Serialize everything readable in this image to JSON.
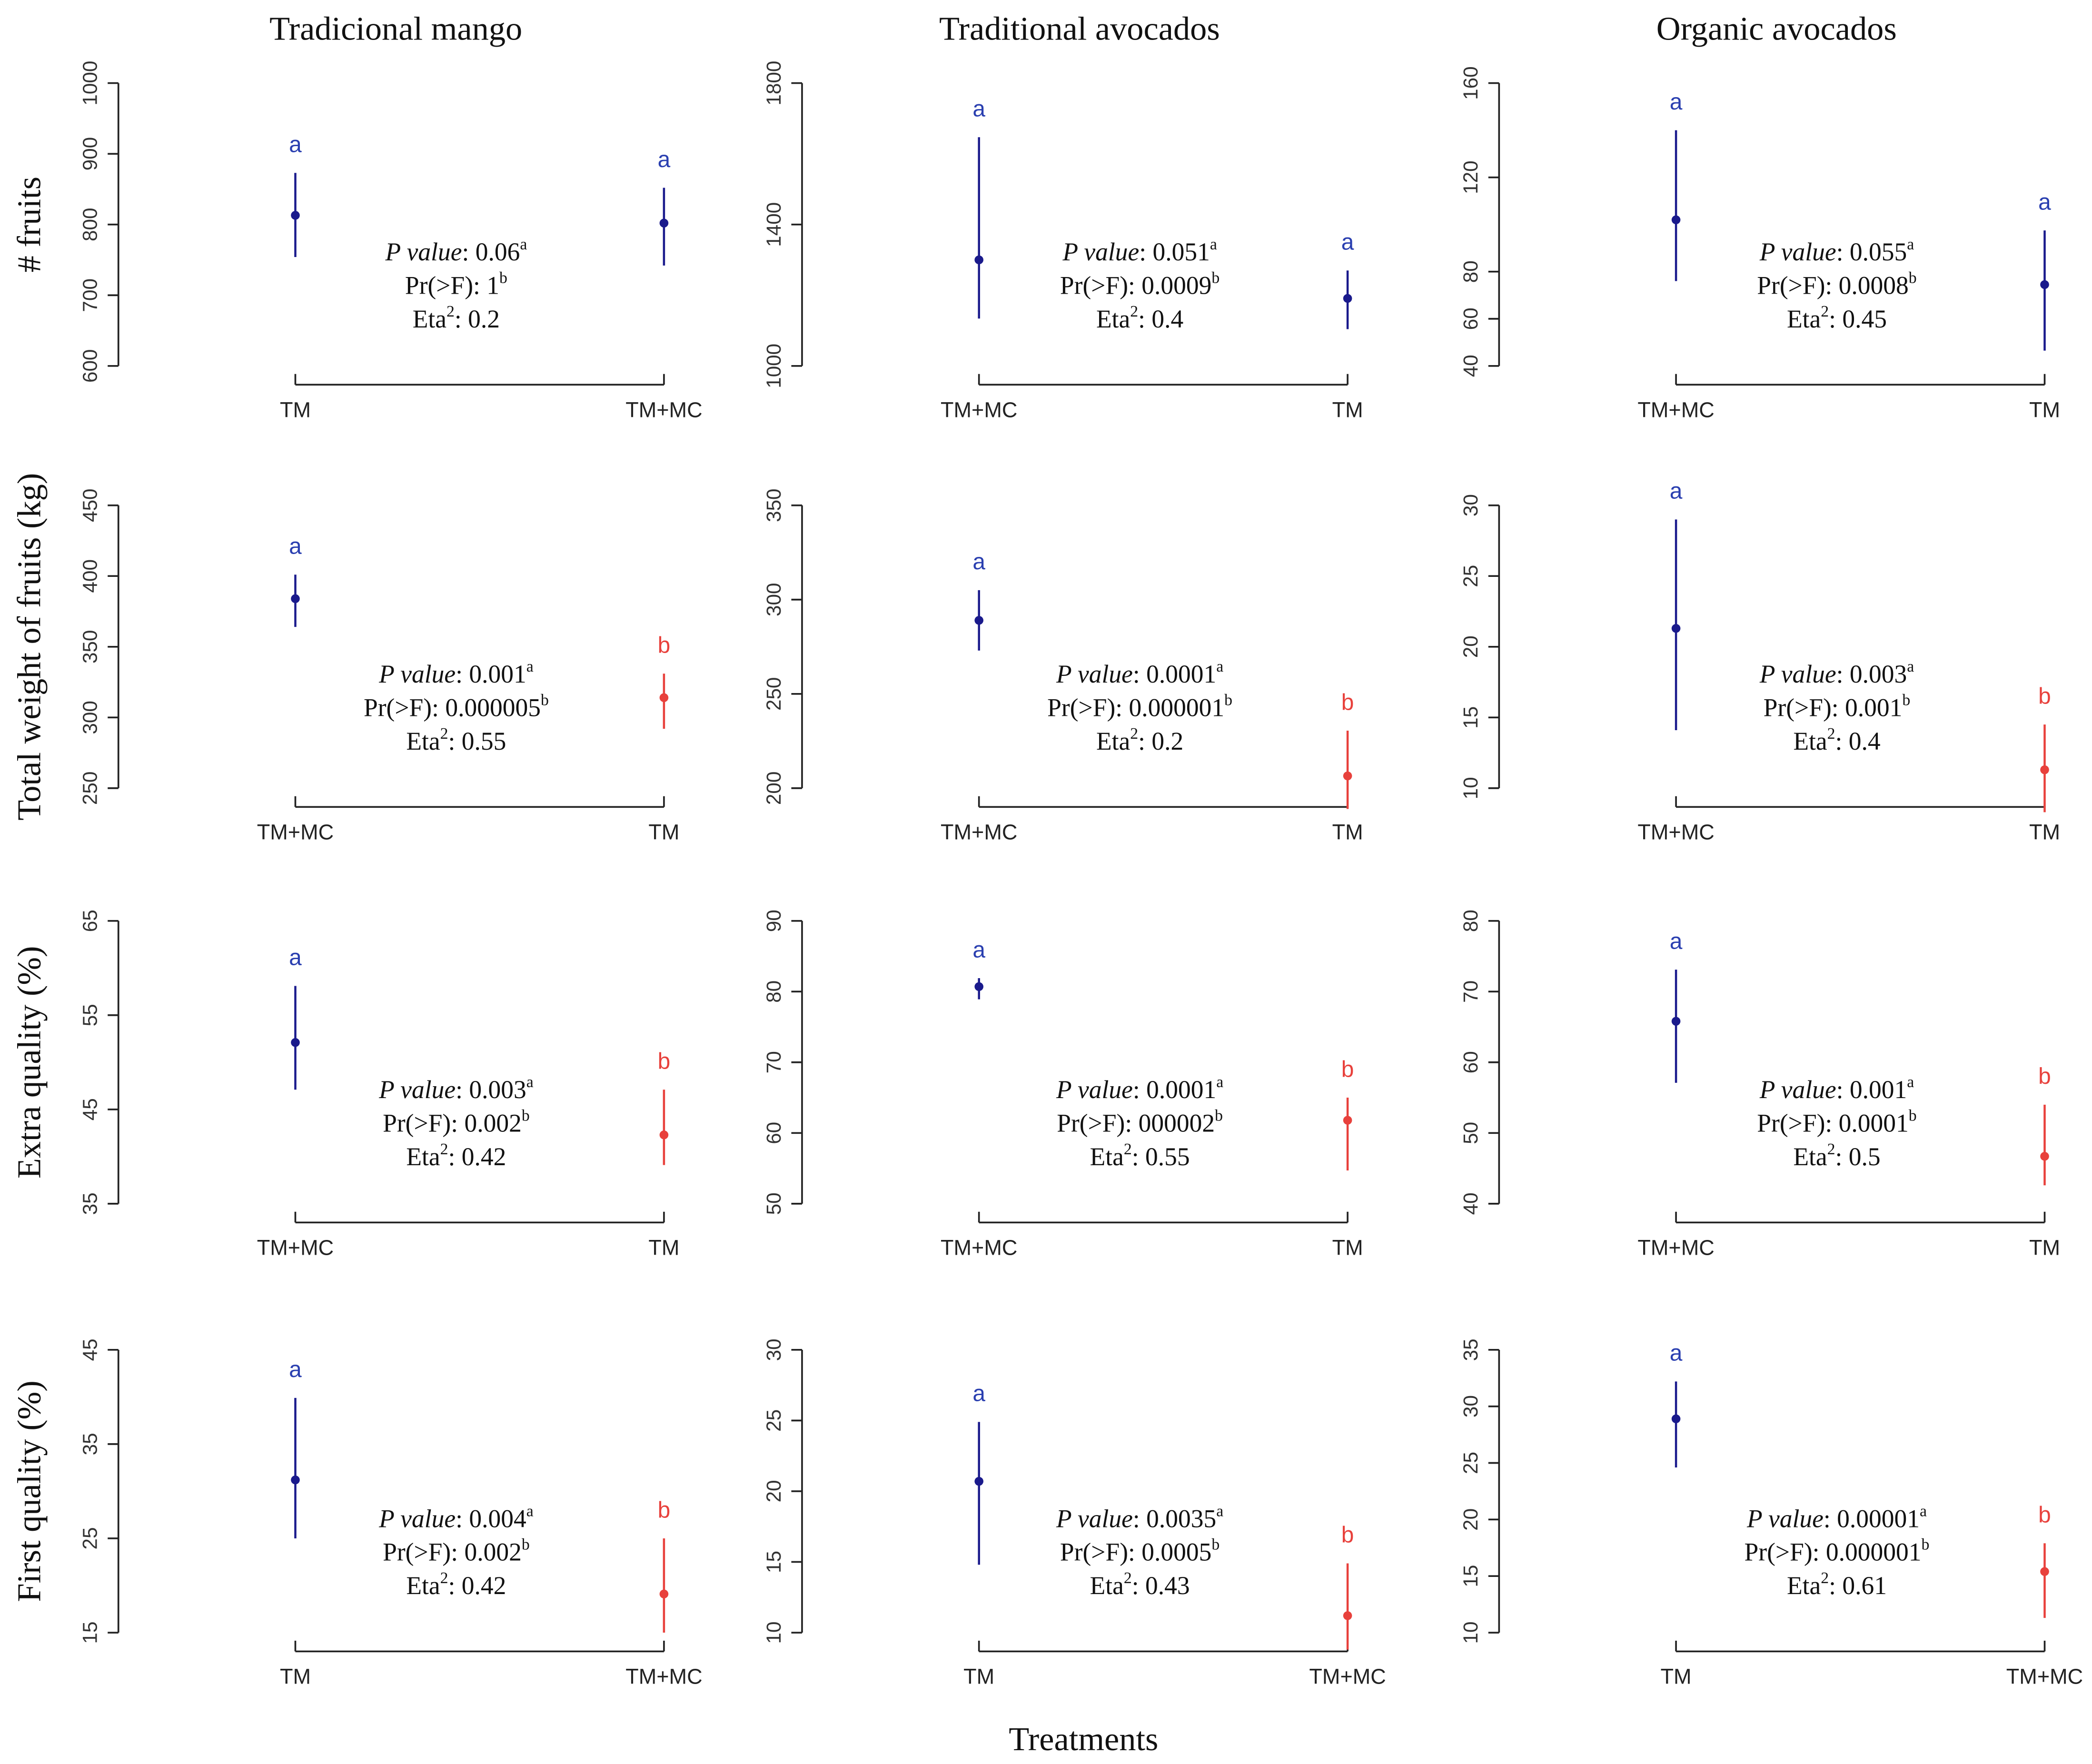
{
  "chart_data": [
    {
      "type": "pointrange",
      "title": "Tradicional mango",
      "ylabel": "# fruits",
      "categories": [
        "TM",
        "TM+MC"
      ],
      "values": [
        813,
        802
      ],
      "low": [
        754,
        742
      ],
      "high": [
        873,
        852
      ],
      "letters": [
        "a",
        "a"
      ],
      "colors": [
        "#1a1a8c",
        "#1a1a8c"
      ],
      "ylim": [
        600,
        1000
      ],
      "yticks": [
        600,
        700,
        800,
        900,
        1000
      ],
      "annotations": [
        [
          {
            "text": "P value",
            "style": "italic"
          },
          {
            "text": ": 0.06"
          },
          {
            "text": "a",
            "style": "sup"
          }
        ],
        [
          {
            "text": "Pr(>F): 1"
          },
          {
            "text": "b",
            "style": "sup"
          }
        ],
        [
          {
            "text": "Eta"
          },
          {
            "text": "2",
            "style": "sup"
          },
          {
            "text": ": 0.2"
          }
        ]
      ]
    },
    {
      "type": "pointrange",
      "title": "Traditional avocados",
      "categories": [
        "TM+MC",
        "TM"
      ],
      "values": [
        1300,
        1191
      ],
      "low": [
        1134,
        1104
      ],
      "high": [
        1647,
        1270
      ],
      "letters": [
        "a",
        "a"
      ],
      "colors": [
        "#1a1a8c",
        "#1a1a8c"
      ],
      "ylim": [
        1000,
        1800
      ],
      "yticks": [
        1000,
        1400,
        1800
      ],
      "annotations": [
        [
          {
            "text": "P value",
            "style": "italic"
          },
          {
            "text": ": 0.051"
          },
          {
            "text": "a",
            "style": "sup"
          }
        ],
        [
          {
            "text": "Pr(>F): 0.0009"
          },
          {
            "text": "b",
            "style": "sup"
          }
        ],
        [
          {
            "text": "Eta"
          },
          {
            "text": "2",
            "style": "sup"
          },
          {
            "text": ": 0.4"
          }
        ]
      ]
    },
    {
      "type": "pointrange",
      "title": "Organic avocados",
      "categories": [
        "TM+MC",
        "TM"
      ],
      "values": [
        102,
        74.5
      ],
      "low": [
        76,
        46.5
      ],
      "high": [
        140,
        97.5
      ],
      "letters": [
        "a",
        "a"
      ],
      "colors": [
        "#1a1a8c",
        "#1a1a8c"
      ],
      "ylim": [
        40,
        160
      ],
      "yticks": [
        40,
        60,
        80,
        120,
        160
      ],
      "annotations": [
        [
          {
            "text": "P value",
            "style": "italic"
          },
          {
            "text": ": 0.055"
          },
          {
            "text": "a",
            "style": "sup"
          }
        ],
        [
          {
            "text": "Pr(>F): 0.0008"
          },
          {
            "text": "b",
            "style": "sup"
          }
        ],
        [
          {
            "text": "Eta"
          },
          {
            "text": "2",
            "style": "sup"
          },
          {
            "text": ": 0.45"
          }
        ]
      ]
    },
    {
      "type": "pointrange",
      "ylabel": "Total weight of fruits (kg)",
      "categories": [
        "TM+MC",
        "TM"
      ],
      "values": [
        384,
        314
      ],
      "low": [
        364,
        292
      ],
      "high": [
        401,
        331
      ],
      "letters": [
        "a",
        "b"
      ],
      "colors": [
        "#1a1a8c",
        "#e8413c"
      ],
      "ylim": [
        250,
        450
      ],
      "yticks": [
        250,
        300,
        350,
        400,
        450
      ],
      "annotations": [
        [
          {
            "text": "P value",
            "style": "italic"
          },
          {
            "text": ": 0.001"
          },
          {
            "text": "a",
            "style": "sup"
          }
        ],
        [
          {
            "text": "Pr(>F): 0.000005"
          },
          {
            "text": "b",
            "style": "sup"
          }
        ],
        [
          {
            "text": "Eta"
          },
          {
            "text": "2",
            "style": "sup"
          },
          {
            "text": ": 0.55"
          }
        ]
      ]
    },
    {
      "type": "pointrange",
      "categories": [
        "TM+MC",
        "TM"
      ],
      "values": [
        289,
        206.5
      ],
      "low": [
        273,
        189
      ],
      "high": [
        305,
        230.5
      ],
      "letters": [
        "a",
        "b"
      ],
      "colors": [
        "#1a1a8c",
        "#e8413c"
      ],
      "ylim": [
        200,
        350
      ],
      "yticks": [
        200,
        250,
        300,
        350
      ],
      "annotations": [
        [
          {
            "text": "P value",
            "style": "italic"
          },
          {
            "text": ": 0.0001"
          },
          {
            "text": "a",
            "style": "sup"
          }
        ],
        [
          {
            "text": "Pr(>F): 0.000001"
          },
          {
            "text": "b",
            "style": "sup"
          }
        ],
        [
          {
            "text": "Eta"
          },
          {
            "text": "2",
            "style": "sup"
          },
          {
            "text": ": 0.2"
          }
        ]
      ]
    },
    {
      "type": "pointrange",
      "categories": [
        "TM+MC",
        "TM"
      ],
      "values": [
        21.3,
        11.3
      ],
      "low": [
        14.1,
        8.3
      ],
      "high": [
        29,
        14.5
      ],
      "letters": [
        "a",
        "b"
      ],
      "colors": [
        "#1a1a8c",
        "#e8413c"
      ],
      "ylim": [
        10,
        30
      ],
      "yticks": [
        10,
        15,
        20,
        25,
        30
      ],
      "annotations": [
        [
          {
            "text": "P value",
            "style": "italic"
          },
          {
            "text": ": 0.003"
          },
          {
            "text": "a",
            "style": "sup"
          }
        ],
        [
          {
            "text": "Pr(>F): 0.001"
          },
          {
            "text": "b",
            "style": "sup"
          }
        ],
        [
          {
            "text": "Eta"
          },
          {
            "text": "2",
            "style": "sup"
          },
          {
            "text": ": 0.4"
          }
        ]
      ]
    },
    {
      "type": "pointrange",
      "ylabel": "Extra quality (%)",
      "categories": [
        "TM+MC",
        "TM"
      ],
      "values": [
        52.1,
        42.3
      ],
      "low": [
        47.1,
        39.1
      ],
      "high": [
        58.1,
        47.1
      ],
      "letters": [
        "a",
        "b"
      ],
      "colors": [
        "#1a1a8c",
        "#e8413c"
      ],
      "ylim": [
        35,
        65
      ],
      "yticks": [
        35,
        45,
        55,
        65
      ],
      "annotations": [
        [
          {
            "text": "P value",
            "style": "italic"
          },
          {
            "text": ": 0.003"
          },
          {
            "text": "a",
            "style": "sup"
          }
        ],
        [
          {
            "text": "Pr(>F): 0.002"
          },
          {
            "text": "b",
            "style": "sup"
          }
        ],
        [
          {
            "text": "Eta"
          },
          {
            "text": "2",
            "style": "sup"
          },
          {
            "text": ": 0.42"
          }
        ]
      ]
    },
    {
      "type": "pointrange",
      "categories": [
        "TM+MC",
        "TM"
      ],
      "values": [
        80.7,
        61.8
      ],
      "low": [
        78.9,
        54.7
      ],
      "high": [
        81.9,
        65
      ],
      "letters": [
        "a",
        "b"
      ],
      "colors": [
        "#1a1a8c",
        "#e8413c"
      ],
      "ylim": [
        50,
        90
      ],
      "yticks": [
        50,
        60,
        70,
        80,
        90
      ],
      "annotations": [
        [
          {
            "text": "P value",
            "style": "italic"
          },
          {
            "text": ": 0.0001"
          },
          {
            "text": "a",
            "style": "sup"
          }
        ],
        [
          {
            "text": "Pr(>F): 000002"
          },
          {
            "text": "b",
            "style": "sup"
          }
        ],
        [
          {
            "text": "Eta"
          },
          {
            "text": "2",
            "style": "sup"
          },
          {
            "text": ": 0.55"
          }
        ]
      ]
    },
    {
      "type": "pointrange",
      "categories": [
        "TM+MC",
        "TM"
      ],
      "values": [
        65.8,
        46.7
      ],
      "low": [
        57.1,
        42.6
      ],
      "high": [
        73.1,
        54
      ],
      "letters": [
        "a",
        "b"
      ],
      "colors": [
        "#1a1a8c",
        "#e8413c"
      ],
      "ylim": [
        40,
        80
      ],
      "yticks": [
        40,
        50,
        60,
        70,
        80
      ],
      "annotations": [
        [
          {
            "text": "P value",
            "style": "italic"
          },
          {
            "text": ": 0.001"
          },
          {
            "text": "a",
            "style": "sup"
          }
        ],
        [
          {
            "text": "Pr(>F): 0.0001"
          },
          {
            "text": "b",
            "style": "sup"
          }
        ],
        [
          {
            "text": "Eta"
          },
          {
            "text": "2",
            "style": "sup"
          },
          {
            "text": ": 0.5"
          }
        ]
      ]
    },
    {
      "type": "pointrange",
      "ylabel": "First quality (%)",
      "categories": [
        "TM",
        "TM+MC"
      ],
      "values": [
        31.2,
        19.1
      ],
      "low": [
        25,
        15
      ],
      "high": [
        39.9,
        25
      ],
      "letters": [
        "a",
        "b"
      ],
      "colors": [
        "#1a1a8c",
        "#e8413c"
      ],
      "ylim": [
        15,
        45
      ],
      "yticks": [
        15,
        25,
        35,
        45
      ],
      "annotations": [
        [
          {
            "text": "P value",
            "style": "italic"
          },
          {
            "text": ": 0.004"
          },
          {
            "text": "a",
            "style": "sup"
          }
        ],
        [
          {
            "text": "Pr(>F): 0.002"
          },
          {
            "text": "b",
            "style": "sup"
          }
        ],
        [
          {
            "text": "Eta"
          },
          {
            "text": "2",
            "style": "sup"
          },
          {
            "text": ": 0.42"
          }
        ]
      ]
    },
    {
      "type": "pointrange",
      "xlabel": "Treatments",
      "categories": [
        "TM",
        "TM+MC"
      ],
      "values": [
        20.7,
        11.2
      ],
      "low": [
        14.8,
        8.8
      ],
      "high": [
        24.9,
        14.9
      ],
      "letters": [
        "a",
        "b"
      ],
      "colors": [
        "#1a1a8c",
        "#e8413c"
      ],
      "ylim": [
        10,
        30
      ],
      "yticks": [
        10,
        15,
        20,
        25,
        30
      ],
      "annotations": [
        [
          {
            "text": "P value",
            "style": "italic"
          },
          {
            "text": ": 0.0035"
          },
          {
            "text": "a",
            "style": "sup"
          }
        ],
        [
          {
            "text": "Pr(>F): 0.0005"
          },
          {
            "text": "b",
            "style": "sup"
          }
        ],
        [
          {
            "text": "Eta"
          },
          {
            "text": "2",
            "style": "sup"
          },
          {
            "text": ": 0.43"
          }
        ]
      ]
    },
    {
      "type": "pointrange",
      "categories": [
        "TM",
        "TM+MC"
      ],
      "values": [
        28.9,
        15.4
      ],
      "low": [
        24.6,
        11.3
      ],
      "high": [
        32.2,
        17.9
      ],
      "letters": [
        "a",
        "b"
      ],
      "colors": [
        "#1a1a8c",
        "#e8413c"
      ],
      "ylim": [
        10,
        35
      ],
      "yticks": [
        10,
        15,
        20,
        25,
        30,
        35
      ],
      "annotations": [
        [
          {
            "text": "P value",
            "style": "italic"
          },
          {
            "text": ": 0.00001"
          },
          {
            "text": "a",
            "style": "sup"
          }
        ],
        [
          {
            "text": "Pr(>F): 0.000001"
          },
          {
            "text": "b",
            "style": "sup"
          }
        ],
        [
          {
            "text": "Eta"
          },
          {
            "text": "2",
            "style": "sup"
          },
          {
            "text": ": 0.61"
          }
        ]
      ]
    }
  ]
}
